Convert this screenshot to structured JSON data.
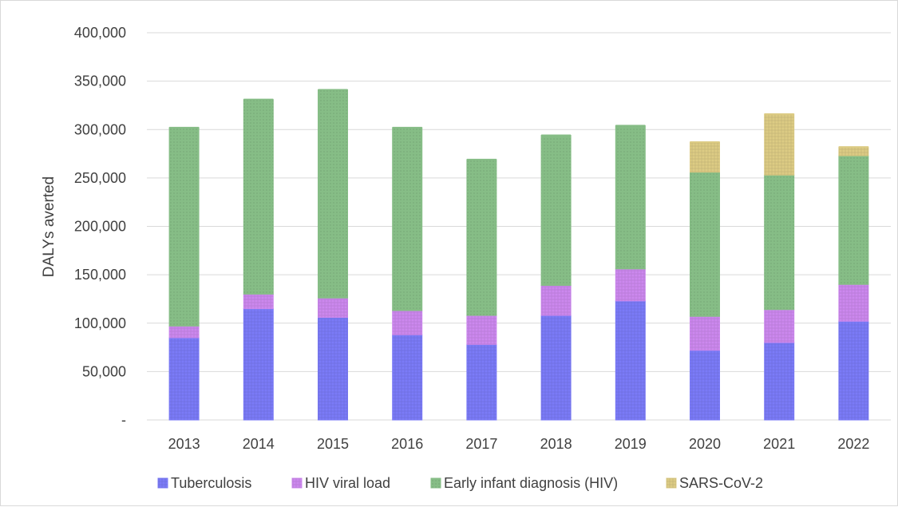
{
  "chart_data": {
    "type": "bar",
    "stacked": true,
    "title": "",
    "xlabel": "",
    "ylabel": "DALYs averted",
    "ylim": [
      0,
      400000
    ],
    "y_ticks": [
      0,
      50000,
      100000,
      150000,
      200000,
      250000,
      300000,
      350000,
      400000
    ],
    "y_tick_labels": [
      "-",
      "50,000",
      "100,000",
      "150,000",
      "200,000",
      "250,000",
      "300,000",
      "350,000",
      "400,000"
    ],
    "grid": true,
    "legend_position": "bottom",
    "categories": [
      "2013",
      "2014",
      "2015",
      "2016",
      "2017",
      "2018",
      "2019",
      "2020",
      "2021",
      "2022"
    ],
    "series": [
      {
        "name": "Tuberculosis",
        "color": "#7b7bf7",
        "values": [
          85000,
          115000,
          106000,
          88000,
          78000,
          108000,
          123000,
          72000,
          80000,
          102000
        ]
      },
      {
        "name": "HIV viral load",
        "color": "#cc88ee",
        "values": [
          12000,
          15000,
          20000,
          25000,
          30000,
          31000,
          33000,
          35000,
          34000,
          38000
        ]
      },
      {
        "name": "Early infant diagnosis (HIV)",
        "color": "#86bd86",
        "values": [
          205000,
          201000,
          215000,
          189000,
          161000,
          155000,
          148000,
          149000,
          139000,
          133000
        ]
      },
      {
        "name": "SARS-CoV-2",
        "color": "#dccb84",
        "values": [
          0,
          0,
          0,
          0,
          0,
          0,
          0,
          31000,
          63000,
          9000
        ]
      }
    ]
  }
}
